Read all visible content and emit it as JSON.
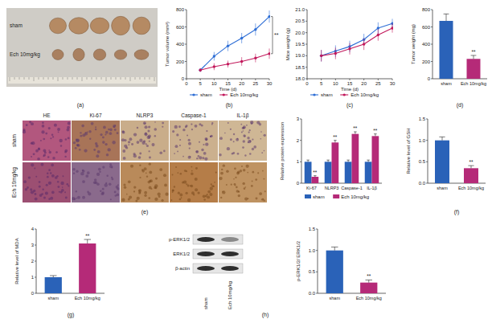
{
  "chart_data": [
    {
      "panel": "(b)",
      "type": "line",
      "x_label": "Time (d)",
      "y_label": "Tumor volume (mm³)",
      "x": [
        5,
        10,
        15,
        20,
        25,
        30
      ],
      "xlim": [
        0,
        30
      ],
      "xticks": [
        0,
        5,
        10,
        15,
        20,
        25,
        30
      ],
      "ylim": [
        0,
        800
      ],
      "yticks": [
        0,
        200,
        400,
        600,
        800
      ],
      "legend": "bottom",
      "annotation": "**",
      "series": [
        {
          "name": "sham",
          "color": "#2f6fd6",
          "marker": "circle",
          "values": [
            100,
            260,
            380,
            470,
            570,
            720
          ],
          "errors": [
            20,
            50,
            60,
            60,
            70,
            70
          ]
        },
        {
          "name": "Ech 10mg/kg",
          "color": "#c2185b",
          "marker": "circle",
          "values": [
            100,
            140,
            170,
            200,
            240,
            290
          ],
          "errors": [
            20,
            40,
            40,
            50,
            50,
            60
          ]
        }
      ]
    },
    {
      "panel": "(c)",
      "type": "line",
      "x_label": "Time (d)",
      "y_label": "Mice weight (g)",
      "x": [
        5,
        10,
        15,
        20,
        25,
        30
      ],
      "xlim": [
        0,
        30
      ],
      "xticks": [
        0,
        5,
        10,
        15,
        20,
        25,
        30
      ],
      "ylim": [
        18,
        21
      ],
      "yticks": [
        {
          "value": 18,
          "label": "18.0"
        },
        18.5,
        {
          "value": 19,
          "label": "19.0"
        },
        19.5,
        {
          "value": 20,
          "label": "20.0"
        },
        20.5,
        {
          "value": 21,
          "label": "21.0"
        }
      ],
      "legend": "bottom",
      "series": [
        {
          "name": "sham",
          "color": "#2f6fd6",
          "marker": "circle",
          "values": [
            19.0,
            19.2,
            19.4,
            19.7,
            20.2,
            20.4
          ],
          "errors": [
            0.25,
            0.25,
            0.25,
            0.25,
            0.25,
            0.2
          ]
        },
        {
          "name": "Ech 10mg/kg",
          "color": "#c2185b",
          "marker": "circle",
          "values": [
            19.0,
            19.1,
            19.3,
            19.5,
            19.9,
            20.2
          ],
          "errors": [
            0.25,
            0.25,
            0.25,
            0.25,
            0.25,
            0.2
          ]
        }
      ]
    },
    {
      "panel": "(d)",
      "type": "bar",
      "y_label": "Tumor weight (mg)",
      "categories": [
        "sham",
        "Ech 10mg/kg"
      ],
      "values": [
        670,
        230
      ],
      "errors": [
        80,
        40
      ],
      "colors": [
        "#2a62b8",
        "#b52a78"
      ],
      "significance": [
        null,
        "**"
      ],
      "ylim": [
        0,
        800
      ],
      "yticks": [
        0,
        200,
        400,
        600,
        800
      ]
    },
    {
      "type": "bar",
      "y_label": "Relative protein expression",
      "categories": [
        "Ki-67",
        "NLRP3",
        "Caspase-1",
        "IL-1β"
      ],
      "ylim": [
        0,
        3
      ],
      "yticks": [
        0,
        1,
        2,
        3
      ],
      "legend": "bottom",
      "series": [
        {
          "name": "sham",
          "color": "#2a62b8",
          "values": [
            1,
            1,
            1,
            1
          ],
          "errors": [
            0.08,
            0.08,
            0.08,
            0.08
          ]
        },
        {
          "name": "Ech 10mg/kg",
          "color": "#b52a78",
          "values": [
            0.3,
            1.9,
            2.3,
            2.2
          ],
          "errors": [
            0.05,
            0.1,
            0.1,
            0.1
          ],
          "significance": [
            "**",
            "**",
            "**",
            "**"
          ]
        }
      ]
    },
    {
      "panel": "(f)",
      "type": "bar",
      "y_label": "Relative level of GSH",
      "categories": [
        "sham",
        "Ech 10mg/kg"
      ],
      "values": [
        1.0,
        0.35
      ],
      "errors": [
        0.08,
        0.06
      ],
      "colors": [
        "#2a62b8",
        "#b52a78"
      ],
      "significance": [
        null,
        "**"
      ],
      "ylim": [
        0,
        1.5
      ],
      "yticks": [
        {
          "value": 0,
          "label": "0.0"
        },
        0.5,
        {
          "value": 1,
          "label": "1.0"
        },
        1.5
      ]
    },
    {
      "panel": "(g)",
      "type": "bar",
      "y_label": "Relative level of MDA",
      "categories": [
        "sham",
        "Ech 10mg/kg"
      ],
      "values": [
        1.0,
        3.1
      ],
      "errors": [
        0.1,
        0.25
      ],
      "colors": [
        "#2a62b8",
        "#b52a78"
      ],
      "significance": [
        null,
        "**"
      ],
      "ylim": [
        0,
        4
      ],
      "yticks": [
        0,
        1,
        2,
        3,
        4
      ]
    },
    {
      "panel": "(h)",
      "type": "bar",
      "y_label": "p-ERK1/2/ ERK1/2",
      "categories": [
        "sham",
        "Ech 10mg/kg"
      ],
      "values": [
        1.0,
        0.25
      ],
      "errors": [
        0.08,
        0.06
      ],
      "colors": [
        "#2a62b8",
        "#b52a78"
      ],
      "significance": [
        null,
        "**"
      ],
      "ylim": [
        0,
        1.5
      ],
      "yticks": [
        {
          "value": 0,
          "label": "0.0"
        },
        0.5,
        {
          "value": 1,
          "label": "1.0"
        },
        1.5
      ]
    }
  ],
  "photo": {
    "panel": "(a)",
    "rows": [
      "sham",
      "Ech 10mg/kg"
    ]
  },
  "ihc": {
    "panel": "(e)",
    "columns": [
      "HE",
      "Ki-67",
      "NLRP3",
      "Caspase-1",
      "IL-1β"
    ],
    "rows": [
      "sham",
      "Ech 10mg/kg"
    ]
  },
  "blot": {
    "bands": [
      "p-ERK1/2",
      "ERK1/2",
      "β-actin"
    ],
    "lanes": [
      "sham",
      "Ech 10mg/kg"
    ]
  }
}
